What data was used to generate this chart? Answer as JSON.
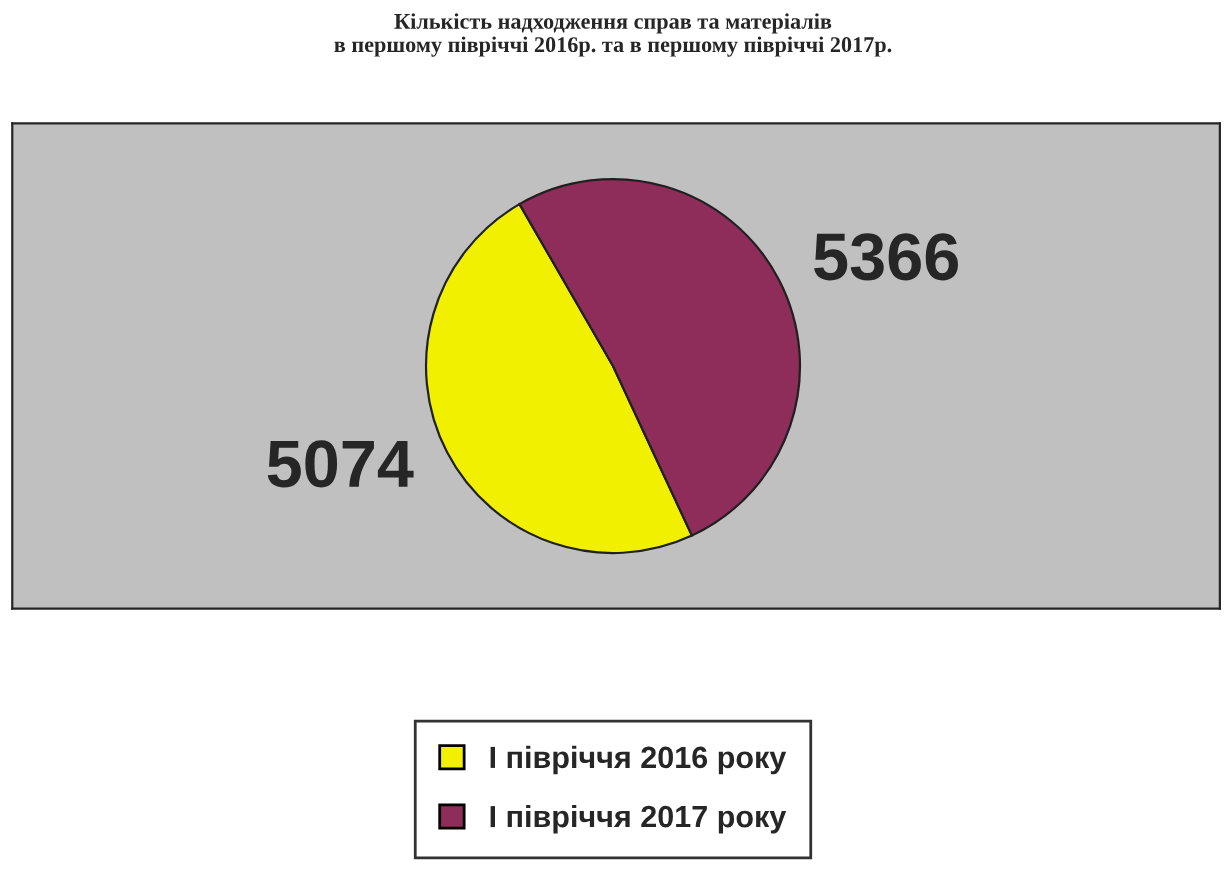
{
  "chart_data": {
    "type": "pie",
    "title": "Кількість надходження справ та матеріалів\nв першому півріччі 2016р. та в першому півріччі 2017р.",
    "categories": [
      "І півріччя 2016 року",
      "І півріччя 2017 року"
    ],
    "values": [
      5074,
      5366
    ],
    "colors": [
      "#f0f000",
      "#8e2c5a"
    ],
    "data_labels": true,
    "legend": "bottom"
  }
}
